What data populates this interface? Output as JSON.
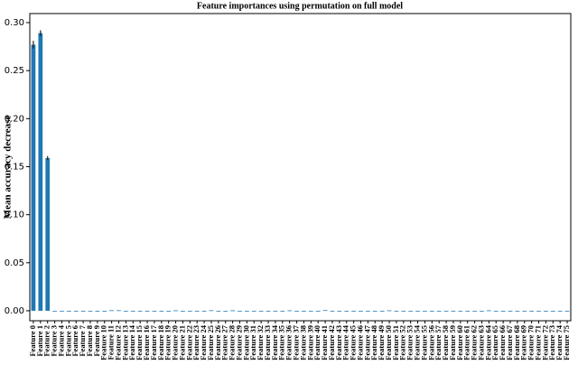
{
  "chart_data": {
    "type": "bar",
    "title": "Feature importances using permutation on full model",
    "y_label": "Mean accuracy decrease",
    "categories": [
      "Feature 0",
      "Feature 1",
      "Feature 2",
      "Feature 3",
      "Feature 4",
      "Feature 5",
      "Feature 6",
      "Feature 7",
      "Feature 8",
      "Feature 9",
      "Feature 10",
      "Feature 11",
      "Feature 12",
      "Feature 13",
      "Feature 14",
      "Feature 15",
      "Feature 16",
      "Feature 17",
      "Feature 18",
      "Feature 19",
      "Feature 20",
      "Feature 21",
      "Feature 22",
      "Feature 23",
      "Feature 24",
      "Feature 25",
      "Feature 26",
      "Feature 27",
      "Feature 28",
      "Feature 29",
      "Feature 30",
      "Feature 31",
      "Feature 32",
      "Feature 33",
      "Feature 34",
      "Feature 35",
      "Feature 36",
      "Feature 37",
      "Feature 38",
      "Feature 39",
      "Feature 40",
      "Feature 41",
      "Feature 42",
      "Feature 43",
      "Feature 44",
      "Feature 45",
      "Feature 46",
      "Feature 47",
      "Feature 48",
      "Feature 49",
      "Feature 50",
      "Feature 51",
      "Feature 52",
      "Feature 53",
      "Feature 54",
      "Feature 55",
      "Feature 56",
      "Feature 57",
      "Feature 58",
      "Feature 59",
      "Feature 60",
      "Feature 61",
      "Feature 62",
      "Feature 63",
      "Feature 64",
      "Feature 65",
      "Feature 66",
      "Feature 67",
      "Feature 68",
      "Feature 69",
      "Feature 70",
      "Feature 71",
      "Feature 72",
      "Feature 73",
      "Feature 74",
      "Feature 75"
    ],
    "values": [
      0.277,
      0.289,
      0.159,
      0,
      0,
      0,
      0,
      0,
      0,
      0,
      0,
      0.0005,
      0.0005,
      0,
      0,
      0,
      0,
      0,
      0,
      0,
      0.0004,
      0,
      0,
      0,
      0,
      0.0005,
      0,
      0,
      0.0004,
      0,
      0,
      0,
      0,
      0,
      0,
      0,
      0.0004,
      0,
      0,
      0,
      0,
      0.0006,
      0,
      0,
      0,
      0,
      0,
      0,
      0,
      0,
      0.0004,
      0,
      0,
      0,
      0,
      0,
      0,
      0,
      0,
      0,
      0,
      0,
      0,
      0,
      0.0004,
      0,
      0,
      0,
      0,
      0,
      0,
      0,
      0,
      0,
      0,
      0
    ],
    "errors": [
      0.004,
      0.003,
      0.002,
      0,
      0,
      0,
      0,
      0,
      0,
      0,
      0,
      0,
      0,
      0,
      0,
      0,
      0,
      0,
      0,
      0,
      0,
      0,
      0,
      0,
      0,
      0,
      0,
      0,
      0,
      0,
      0,
      0,
      0,
      0,
      0,
      0,
      0,
      0,
      0,
      0,
      0,
      0,
      0,
      0,
      0,
      0,
      0,
      0,
      0,
      0,
      0,
      0,
      0,
      0,
      0,
      0,
      0,
      0,
      0,
      0,
      0,
      0,
      0,
      0,
      0,
      0,
      0,
      0,
      0,
      0,
      0,
      0,
      0,
      0,
      0,
      0
    ],
    "color": "#1f77b4",
    "ylim": [
      -0.0104,
      0.3094
    ],
    "yticks": [
      {
        "value": 0,
        "label": "0.00"
      },
      {
        "value": 0.05,
        "label": "0.05"
      },
      {
        "value": 0.1,
        "label": "0.10"
      },
      {
        "value": 0.15,
        "label": "0.15"
      },
      {
        "value": 0.2,
        "label": "0.20"
      },
      {
        "value": 0.25,
        "label": "0.25"
      },
      {
        "value": 0.3,
        "label": "0.30"
      }
    ]
  }
}
